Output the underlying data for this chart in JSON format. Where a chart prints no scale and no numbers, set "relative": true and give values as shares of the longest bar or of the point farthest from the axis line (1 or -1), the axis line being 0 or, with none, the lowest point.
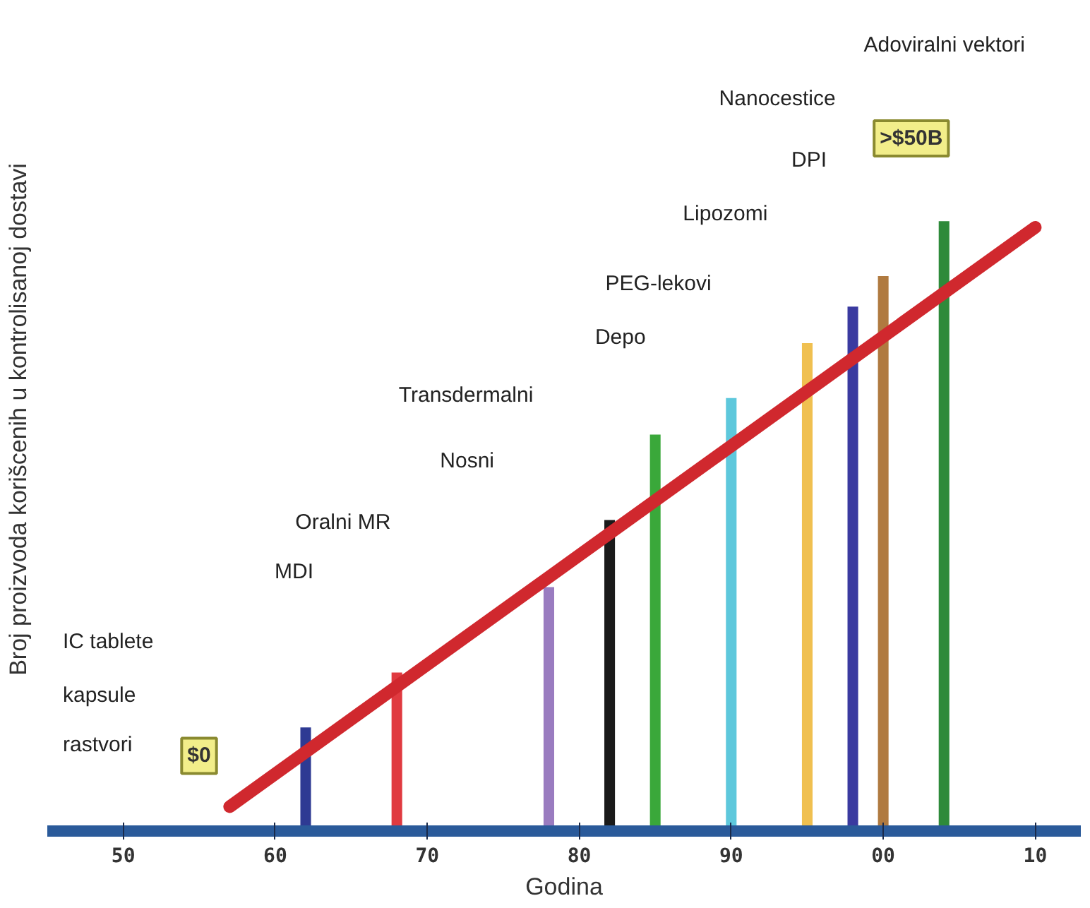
{
  "chart_data": {
    "type": "bar",
    "relative": true,
    "xlabel": "Godina",
    "ylabel": "Broj proizvoda korišcenih u kontrolisanoj dostavi",
    "x": [
      1962,
      1968,
      1978,
      1982,
      1985,
      1990,
      1995,
      1998,
      2000,
      2004
    ],
    "xlim": [
      1945,
      2013
    ],
    "xticks": [
      {
        "value": 1950,
        "label": "50"
      },
      {
        "value": 1960,
        "label": "60"
      },
      {
        "value": 1970,
        "label": "70"
      },
      {
        "value": 1980,
        "label": "80"
      },
      {
        "value": 1990,
        "label": "90"
      },
      {
        "value": 2000,
        "label": "00"
      },
      {
        "value": 2010,
        "label": "10"
      }
    ],
    "tick_labels": "x",
    "series": [
      {
        "colors": [
          "#2e3a93",
          "#e03a40",
          "#9a7cc0",
          "#1a1a1a",
          "#3aa83a",
          "#5ec8dc",
          "#f0c050",
          "#3a3aa0",
          "#b07a40",
          "#2e8a3a"
        ],
        "values": [
          0.17,
          0.26,
          0.4,
          0.51,
          0.65,
          0.71,
          0.8,
          0.86,
          0.91,
          1
        ]
      },
      {
        "type": "line",
        "color": "#d0282e",
        "x": [
          1957,
          2010
        ],
        "values": [
          0.04,
          0.99
        ]
      }
    ],
    "annotations": [
      "IC tablete",
      "kapsule",
      "rastvori",
      "MDI",
      "Oralni MR",
      "Nosni",
      "Transdermalni",
      "Depo",
      "PEG-lekovi",
      "Lipozomi",
      "DPI",
      "Nanocestice",
      "Adoviralni vektori",
      "$0",
      ">$50B"
    ]
  }
}
